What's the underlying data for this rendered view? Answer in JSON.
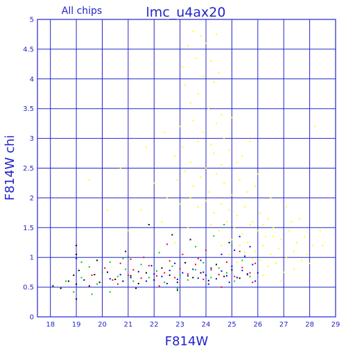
{
  "chart_data": {
    "type": "scatter",
    "title": "lmc_u4ax20",
    "panel_label": "All chips",
    "xlabel": "F814W",
    "ylabel": "F814W chi",
    "xlim": [
      17.5,
      29
    ],
    "ylim": [
      0,
      5
    ],
    "xticks": [
      "18",
      "19",
      "20",
      "21",
      "22",
      "23",
      "24",
      "25",
      "26",
      "27",
      "28",
      "29"
    ],
    "yticks": [
      "0",
      "0.5",
      "1",
      "1.5",
      "2",
      "2.5",
      "3",
      "3.5",
      "4",
      "4.5",
      "5"
    ],
    "grid": true,
    "axis_color": "#2323cc",
    "series": [
      {
        "color": "#000000",
        "points": [
          [
            18.1,
            0.52
          ],
          [
            18.4,
            0.48
          ],
          [
            18.7,
            0.6
          ],
          [
            18.9,
            0.7
          ],
          [
            19.0,
            0.55
          ],
          [
            19.0,
            1.05
          ],
          [
            19.0,
            1.2
          ],
          [
            19.0,
            0.3
          ],
          [
            19.1,
            0.78
          ],
          [
            19.3,
            0.62
          ],
          [
            19.5,
            0.52
          ],
          [
            19.7,
            0.71
          ],
          [
            19.9,
            0.58
          ],
          [
            20.2,
            0.75
          ],
          [
            20.5,
            0.63
          ],
          [
            20.8,
            0.6
          ],
          [
            21.1,
            0.69
          ],
          [
            21.4,
            0.56
          ],
          [
            21.7,
            0.74
          ],
          [
            22.0,
            0.62
          ],
          [
            22.3,
            0.82
          ],
          [
            22.6,
            0.7
          ],
          [
            22.9,
            0.58
          ],
          [
            23.2,
            0.91
          ],
          [
            23.5,
            0.66
          ],
          [
            23.8,
            0.74
          ],
          [
            24.1,
            0.61
          ],
          [
            24.4,
            0.88
          ],
          [
            24.7,
            0.68
          ],
          [
            25.0,
            0.79
          ],
          [
            25.3,
            0.65
          ],
          [
            25.6,
            0.72
          ],
          [
            21.8,
            1.55
          ],
          [
            23.4,
            1.3
          ],
          [
            22.7,
            1.38
          ],
          [
            20.9,
            1.1
          ],
          [
            19.8,
            0.95
          ],
          [
            24.9,
            1.25
          ],
          [
            21.3,
            0.48
          ],
          [
            22.9,
            0.45
          ]
        ]
      },
      {
        "color": "#ff0000",
        "points": [
          [
            19.6,
            0.7
          ],
          [
            20.1,
            0.82
          ],
          [
            20.4,
            0.62
          ],
          [
            20.7,
            0.9
          ],
          [
            21.0,
            0.7
          ],
          [
            21.2,
            0.79
          ],
          [
            21.5,
            0.65
          ],
          [
            21.8,
            0.86
          ],
          [
            22.1,
            0.69
          ],
          [
            22.4,
            0.74
          ],
          [
            22.6,
            0.94
          ],
          [
            22.8,
            0.66
          ],
          [
            23.0,
            0.81
          ],
          [
            23.3,
            0.72
          ],
          [
            23.6,
            0.88
          ],
          [
            23.9,
            0.63
          ],
          [
            24.2,
            0.79
          ],
          [
            24.5,
            0.71
          ],
          [
            24.8,
            0.92
          ],
          [
            25.1,
            0.68
          ],
          [
            25.4,
            0.83
          ],
          [
            25.7,
            0.74
          ],
          [
            25.9,
            0.9
          ],
          [
            22.5,
            1.22
          ],
          [
            24.0,
            1.12
          ],
          [
            23.1,
            1.05
          ],
          [
            21.6,
            1.0
          ],
          [
            25.3,
            1.1
          ],
          [
            20.6,
            0.55
          ],
          [
            24.6,
            0.5
          ],
          [
            22.2,
            0.52
          ],
          [
            23.7,
            0.98
          ],
          [
            25.8,
            0.58
          ],
          [
            21.1,
            0.97
          ]
        ]
      },
      {
        "color": "#00cc00",
        "points": [
          [
            18.6,
            0.6
          ],
          [
            19.2,
            0.66
          ],
          [
            19.5,
            0.84
          ],
          [
            19.8,
            0.55
          ],
          [
            20.0,
            0.75
          ],
          [
            20.3,
            0.92
          ],
          [
            20.6,
            0.68
          ],
          [
            20.9,
            0.8
          ],
          [
            21.2,
            0.6
          ],
          [
            21.5,
            0.88
          ],
          [
            21.8,
            0.66
          ],
          [
            22.1,
            0.77
          ],
          [
            22.4,
            0.58
          ],
          [
            22.7,
            0.85
          ],
          [
            23.0,
            0.7
          ],
          [
            23.3,
            0.62
          ],
          [
            23.6,
            0.79
          ],
          [
            23.9,
            0.91
          ],
          [
            24.2,
            0.66
          ],
          [
            24.5,
            0.82
          ],
          [
            24.8,
            0.74
          ],
          [
            25.1,
            0.6
          ],
          [
            25.4,
            0.95
          ],
          [
            25.7,
            0.68
          ],
          [
            24.3,
            1.36
          ],
          [
            23.6,
            1.18
          ],
          [
            22.2,
            1.08
          ],
          [
            21.0,
            1.02
          ],
          [
            20.3,
            0.42
          ],
          [
            19.2,
            0.92
          ],
          [
            25.0,
            1.2
          ],
          [
            24.7,
            1.55
          ],
          [
            22.9,
            0.48
          ],
          [
            20.8,
            0.98
          ],
          [
            18.9,
            0.42
          ],
          [
            19.6,
            0.38
          ]
        ]
      },
      {
        "color": "#0000ff",
        "points": [
          [
            20.3,
            0.64
          ],
          [
            20.7,
            0.71
          ],
          [
            21.1,
            0.66
          ],
          [
            21.4,
            0.76
          ],
          [
            21.7,
            0.6
          ],
          [
            22.0,
            0.72
          ],
          [
            22.3,
            0.68
          ],
          [
            22.6,
            0.78
          ],
          [
            22.9,
            0.63
          ],
          [
            23.1,
            0.74
          ],
          [
            23.3,
            0.69
          ],
          [
            23.5,
            0.8
          ],
          [
            23.7,
            0.65
          ],
          [
            23.9,
            0.75
          ],
          [
            24.0,
            0.7
          ],
          [
            24.2,
            0.82
          ],
          [
            24.4,
            0.64
          ],
          [
            24.6,
            0.77
          ],
          [
            24.8,
            0.69
          ],
          [
            25.0,
            0.85
          ],
          [
            25.2,
            0.66
          ],
          [
            25.4,
            0.78
          ],
          [
            25.6,
            0.71
          ],
          [
            25.8,
            0.88
          ],
          [
            26.0,
            0.74
          ],
          [
            25.5,
            1.02
          ],
          [
            25.1,
            1.12
          ],
          [
            24.6,
            1.05
          ],
          [
            23.8,
            0.95
          ],
          [
            22.8,
            0.9
          ],
          [
            21.9,
            0.86
          ],
          [
            25.9,
            0.6
          ],
          [
            24.1,
            0.55
          ],
          [
            22.5,
            0.56
          ],
          [
            25.3,
            1.35
          ],
          [
            19.0,
            0.98
          ],
          [
            25.7,
            1.18
          ],
          [
            24.9,
            0.58
          ]
        ]
      },
      {
        "color": "#ffff00",
        "points": [
          [
            23.1,
            4.2
          ],
          [
            23.3,
            4.55
          ],
          [
            23.5,
            4.8
          ],
          [
            23.6,
            4.35
          ],
          [
            23.8,
            4.72
          ],
          [
            23.9,
            4.05
          ],
          [
            24.0,
            4.6
          ],
          [
            24.2,
            4.3
          ],
          [
            24.4,
            4.75
          ],
          [
            24.5,
            4.1
          ],
          [
            23.2,
            3.9
          ],
          [
            23.4,
            3.6
          ],
          [
            23.7,
            3.75
          ],
          [
            24.1,
            3.5
          ],
          [
            24.3,
            3.95
          ],
          [
            24.6,
            3.4
          ],
          [
            23.0,
            3.2
          ],
          [
            23.5,
            3.3
          ],
          [
            23.9,
            3.1
          ],
          [
            24.2,
            2.9
          ],
          [
            24.4,
            3.25
          ],
          [
            24.7,
            3.0
          ],
          [
            25.0,
            3.35
          ],
          [
            22.8,
            2.7
          ],
          [
            23.1,
            2.85
          ],
          [
            23.4,
            2.6
          ],
          [
            23.7,
            2.95
          ],
          [
            24.0,
            2.5
          ],
          [
            24.3,
            2.75
          ],
          [
            24.6,
            2.55
          ],
          [
            24.9,
            2.8
          ],
          [
            25.2,
            2.6
          ],
          [
            22.9,
            2.3
          ],
          [
            23.2,
            2.45
          ],
          [
            23.5,
            2.2
          ],
          [
            23.8,
            2.35
          ],
          [
            24.1,
            2.1
          ],
          [
            24.4,
            2.4
          ],
          [
            24.7,
            2.25
          ],
          [
            25.0,
            2.05
          ],
          [
            25.3,
            2.3
          ],
          [
            25.6,
            2.1
          ],
          [
            25.9,
            2.2
          ],
          [
            23.0,
            1.9
          ],
          [
            23.4,
            2.0
          ],
          [
            23.7,
            1.85
          ],
          [
            24.0,
            1.95
          ],
          [
            24.3,
            1.75
          ],
          [
            24.6,
            1.9
          ],
          [
            24.9,
            1.8
          ],
          [
            25.2,
            1.7
          ],
          [
            25.5,
            1.85
          ],
          [
            25.8,
            1.6
          ],
          [
            26.1,
            1.75
          ],
          [
            26.4,
            1.65
          ],
          [
            24.2,
            1.55
          ],
          [
            24.5,
            1.45
          ],
          [
            24.8,
            1.6
          ],
          [
            25.1,
            1.5
          ],
          [
            25.4,
            1.4
          ],
          [
            25.7,
            1.55
          ],
          [
            26.0,
            1.45
          ],
          [
            26.3,
            1.35
          ],
          [
            26.6,
            1.5
          ],
          [
            26.9,
            1.3
          ],
          [
            27.2,
            1.45
          ],
          [
            27.5,
            1.25
          ],
          [
            27.8,
            1.35
          ],
          [
            28.1,
            1.2
          ],
          [
            25.0,
            1.3
          ],
          [
            25.3,
            1.2
          ],
          [
            25.6,
            1.25
          ],
          [
            25.9,
            1.1
          ],
          [
            26.2,
            1.2
          ],
          [
            26.5,
            1.05
          ],
          [
            26.8,
            1.15
          ],
          [
            27.1,
            1.0
          ],
          [
            27.4,
            1.1
          ],
          [
            27.7,
            0.95
          ],
          [
            28.0,
            0.9
          ],
          [
            26.1,
            0.95
          ],
          [
            26.4,
            0.85
          ],
          [
            26.7,
            0.9
          ],
          [
            27.0,
            0.75
          ],
          [
            26.2,
            0.7
          ],
          [
            28.4,
            1.45
          ],
          [
            21.5,
            1.8
          ],
          [
            22.0,
            2.25
          ],
          [
            21.7,
            2.85
          ],
          [
            22.5,
            2.0
          ],
          [
            22.3,
            1.6
          ],
          [
            21.0,
            1.45
          ],
          [
            20.7,
            2.5
          ],
          [
            19.5,
            2.3
          ],
          [
            20.2,
            1.8
          ],
          [
            22.4,
            3.1
          ],
          [
            25.4,
            2.7
          ],
          [
            26.0,
            2.4
          ],
          [
            26.5,
            2.0
          ],
          [
            27.1,
            1.85
          ],
          [
            27.6,
            1.65
          ],
          [
            28.2,
            3.2
          ],
          [
            25.7,
            2.95
          ],
          [
            26.2,
            1.55
          ],
          [
            24.9,
            1.05
          ],
          [
            25.5,
            1.08
          ],
          [
            25.8,
            0.98
          ],
          [
            26.6,
            1.35
          ],
          [
            27.3,
            1.6
          ],
          [
            27.9,
            1.05
          ],
          [
            28.5,
            1.2
          ],
          [
            23.3,
            1.5
          ],
          [
            22.8,
            1.25
          ],
          [
            24.6,
            1.2
          ],
          [
            25.2,
            0.92
          ],
          [
            26.9,
            0.6
          ],
          [
            27.4,
            0.8
          ]
        ]
      }
    ]
  }
}
